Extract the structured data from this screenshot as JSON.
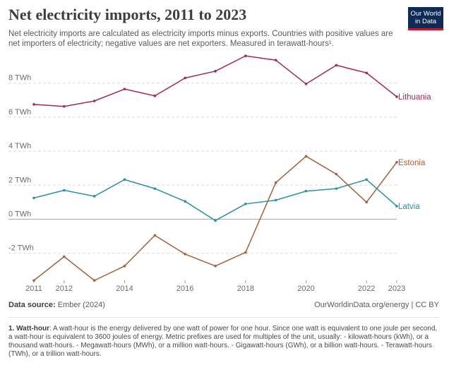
{
  "header": {
    "title": "Net electricity imports, 2011 to 2023",
    "subtitle": "Net electricity imports are calculated as electricity imports minus exports. Countries with positive values are net importers of electricity; negative values are net exporters. Measured in terawatt-hours¹.",
    "logo_line1": "Our World",
    "logo_line2": "in Data"
  },
  "chart_data": {
    "type": "line",
    "title": "Net electricity imports, 2011 to 2023",
    "xlabel": "",
    "ylabel": "",
    "x": [
      2011,
      2012,
      2013,
      2014,
      2015,
      2016,
      2017,
      2018,
      2019,
      2020,
      2021,
      2022,
      2023
    ],
    "xticks": [
      "2011",
      "2012",
      "2014",
      "2016",
      "2018",
      "2020",
      "2022",
      "2023"
    ],
    "yticks": [
      "-2 TWh",
      "0 TWh",
      "2 TWh",
      "4 TWh",
      "6 TWh",
      "8 TWh"
    ],
    "ylim": [
      -3.6,
      9.6
    ],
    "grid": true,
    "legend": "right, labels at line ends",
    "series": [
      {
        "name": "Lithuania",
        "color": "#a2285a",
        "values": [
          6.75,
          6.63,
          6.95,
          7.65,
          7.25,
          8.3,
          8.7,
          9.6,
          9.35,
          7.95,
          9.05,
          8.6,
          7.2
        ]
      },
      {
        "name": "Latvia",
        "color": "#2d8fa3",
        "values": [
          1.25,
          1.7,
          1.35,
          2.33,
          1.8,
          1.05,
          -0.08,
          0.9,
          1.12,
          1.65,
          1.8,
          2.33,
          0.77
        ]
      },
      {
        "name": "Estonia",
        "color": "#a2603b",
        "values": [
          -3.6,
          -2.2,
          -3.6,
          -2.75,
          -0.95,
          -2.05,
          -2.75,
          -1.95,
          2.15,
          3.7,
          2.65,
          1.0,
          3.35
        ]
      }
    ]
  },
  "footer": {
    "source_label": "Data source:",
    "source_value": "Ember (2024)",
    "credit": "OurWorldinData.org/energy | CC BY"
  },
  "note": {
    "label": "1. Watt-hour",
    "text": ": A watt-hour is the energy delivered by one watt of power for one hour. Since one watt is equivalent to one joule per second, a watt-hour is equivalent to 3600 joules of energy. Metric prefixes are used for multiples of the unit, usually: - kilowatt-hours (kWh), or a thousand watt-hours. - Megawatt-hours (MWh), or a million watt-hours. - Gigawatt-hours (GWh), or a billion watt-hours. - Terawatt-hours (TWh), or a trillion watt-hours."
  }
}
